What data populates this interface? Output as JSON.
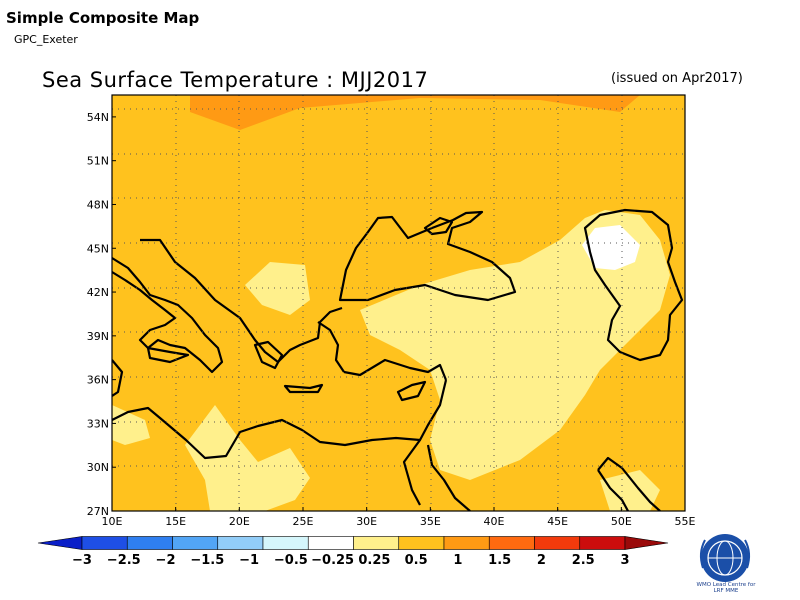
{
  "header": {
    "title": "Simple Composite Map",
    "subtitle": "GPC_Exeter"
  },
  "map": {
    "title": "Sea Surface Temperature : MJJ2017",
    "issued": "(issued on Apr2017)",
    "lat_labels": [
      "54N",
      "51N",
      "48N",
      "45N",
      "42N",
      "39N",
      "36N",
      "33N",
      "30N",
      "27N"
    ],
    "lon_labels": [
      "10E",
      "15E",
      "20E",
      "25E",
      "30E",
      "35E",
      "40E",
      "45E",
      "50E",
      "55E"
    ],
    "extent": {
      "lon": [
        10,
        55
      ],
      "lat": [
        27,
        55.5
      ]
    },
    "grid": true,
    "dominant_category": "0.5 to 1"
  },
  "colorbar": {
    "labels": [
      "−3",
      "−2.5",
      "−2",
      "−1.5",
      "−1",
      "−0.5",
      "−0.25",
      "0.25",
      "0.5",
      "1",
      "1.5",
      "2",
      "2.5",
      "3"
    ],
    "colors": [
      "#0a1fc8",
      "#1e4fe6",
      "#2f7ff0",
      "#52a5f5",
      "#92cdf8",
      "#d5f6fb",
      "#ffffff",
      "#fff08c",
      "#ffc21e",
      "#ff9a14",
      "#ff6a10",
      "#f23a0c",
      "#cc0d0d",
      "#9a0a0a"
    ]
  },
  "logo": {
    "text_line1": "WMO Lead Centre for",
    "text_line2": "LRF MME"
  }
}
